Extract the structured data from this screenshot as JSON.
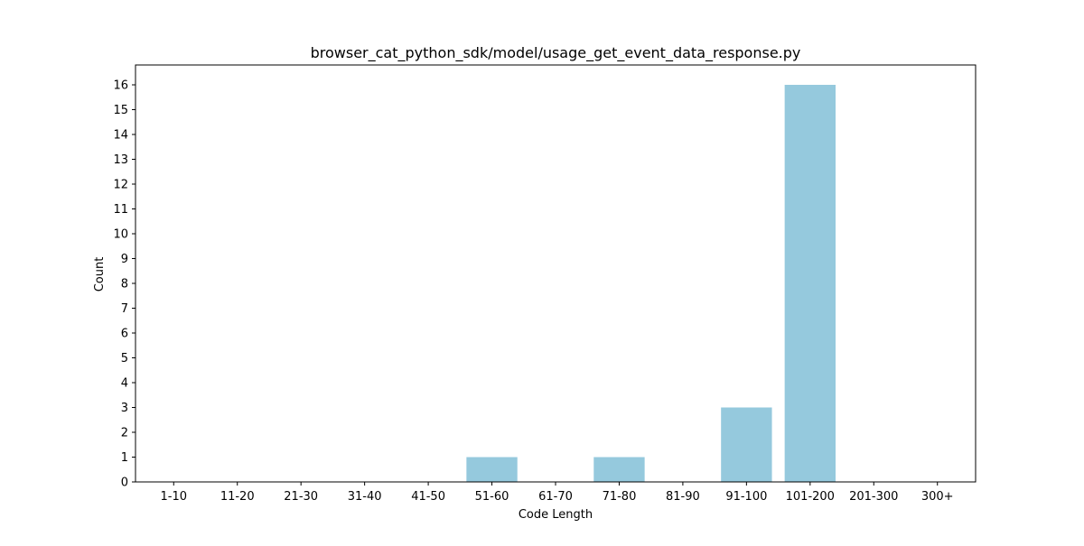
{
  "chart_data": {
    "type": "bar",
    "title": "browser_cat_python_sdk/model/usage_get_event_data_response.py",
    "xlabel": "Code Length",
    "ylabel": "Count",
    "categories": [
      "1-10",
      "11-20",
      "21-30",
      "31-40",
      "41-50",
      "51-60",
      "61-70",
      "71-80",
      "81-90",
      "91-100",
      "101-200",
      "201-300",
      "300+"
    ],
    "values": [
      0,
      0,
      0,
      0,
      0,
      1,
      0,
      1,
      0,
      3,
      16,
      0,
      0
    ],
    "ylim": [
      0,
      16.8
    ],
    "yticks": [
      0,
      1,
      2,
      3,
      4,
      5,
      6,
      7,
      8,
      9,
      10,
      11,
      12,
      13,
      14,
      15,
      16
    ],
    "bar_color": "#95c9dd",
    "grid": false,
    "legend": "none"
  }
}
